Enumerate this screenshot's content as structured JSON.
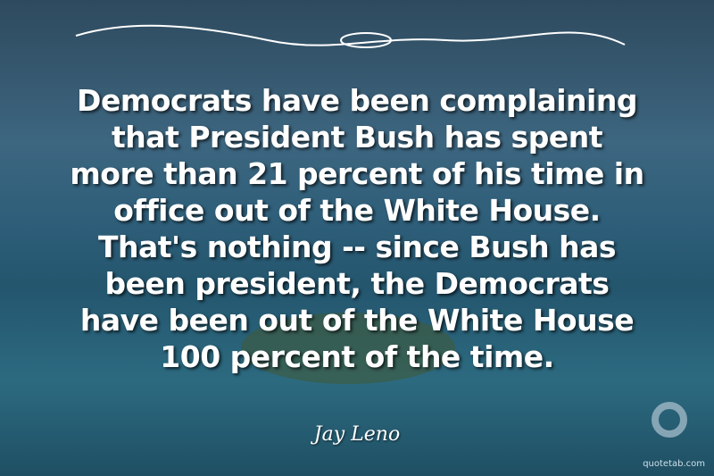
{
  "quote": {
    "lines": [
      "Democrats have been complaining",
      "that President Bush has spent",
      "more than 21 percent of his time in",
      "office out of the White House.",
      "That's nothing -- since Bush has",
      "been president, the Democrats",
      "have been out of the White House",
      "100 percent of the time."
    ],
    "author": "Jay Leno"
  },
  "watermark": "quotetab.com"
}
